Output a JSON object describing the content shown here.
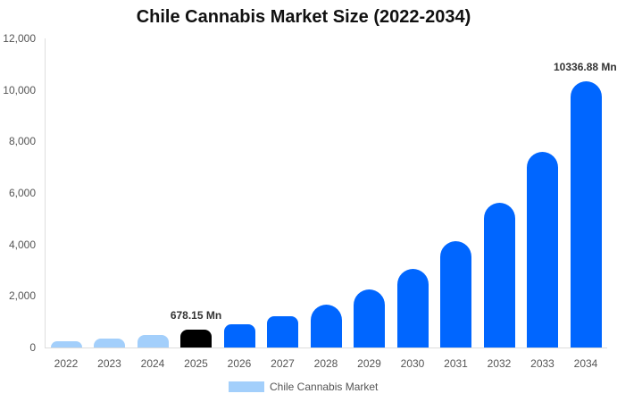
{
  "chart_data": {
    "type": "bar",
    "title": "Chile Cannabis Market Size (2022-2034)",
    "xlabel": "",
    "ylabel": "",
    "ylim": [
      0,
      12000
    ],
    "yticks": [
      "0",
      "2,000",
      "4,000",
      "6,000",
      "8,000",
      "10,000",
      "12,000"
    ],
    "categories": [
      "2022",
      "2023",
      "2024",
      "2025",
      "2026",
      "2027",
      "2028",
      "2029",
      "2030",
      "2031",
      "2032",
      "2033",
      "2034"
    ],
    "series": [
      {
        "name": "Chile Cannabis Market",
        "values": [
          260,
          350,
          480,
          678.15,
          900,
          1210,
          1660,
          2250,
          3050,
          4130,
          5620,
          7600,
          10336.88
        ]
      }
    ],
    "bar_colors": [
      "#a3cffb",
      "#a3cffb",
      "#a3cffb",
      "#000000",
      "#0066ff",
      "#0066ff",
      "#0066ff",
      "#0066ff",
      "#0066ff",
      "#0066ff",
      "#0066ff",
      "#0066ff",
      "#0066ff"
    ],
    "annotations": [
      {
        "category": "2025",
        "text": "678.15 Mn"
      },
      {
        "category": "2034",
        "text": "10336.88 Mn"
      }
    ],
    "legend": {
      "position": "bottom",
      "label": "Chile Cannabis Market",
      "color": "#a3cffb"
    },
    "grid": false
  }
}
